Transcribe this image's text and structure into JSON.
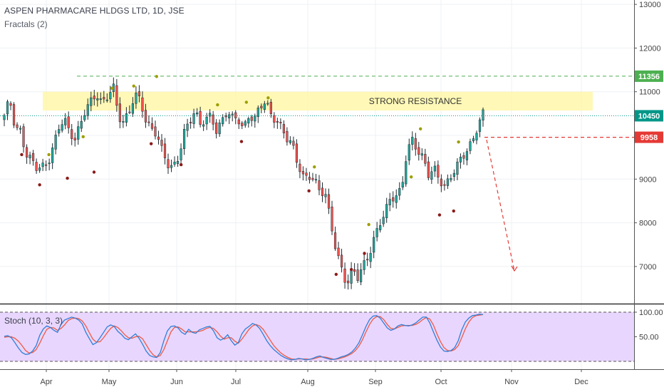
{
  "header": {
    "title": "ASPEN PHARMACARE HLDGS LTD, 1D, JSE",
    "indicator": "Fractals (2)"
  },
  "stoch": {
    "label": "Stoch (10, 3, 3)",
    "ticks": [
      "100.00",
      "50.00"
    ]
  },
  "colors": {
    "up": "#26a69a",
    "down": "#ef5350",
    "fractal_up": "#9e9e00",
    "fractal_down": "#8b1a1a",
    "zone": "#fff59d",
    "stoch_bg": "#e9d6ff",
    "k_line": "#2f7fd8",
    "d_line": "#ef5a44",
    "resistance": "#4caf50",
    "current": "#009688",
    "target": "#e53935"
  },
  "chart_data": {
    "type": "candlestick",
    "title": "ASPEN PHARMACARE HLDGS LTD, 1D, JSE",
    "y_axis_ticks": [
      7000,
      8000,
      9000,
      10000,
      11000,
      12000,
      13000
    ],
    "ylim": [
      6150,
      13100
    ],
    "x_axis_labels": [
      "Apr",
      "May",
      "Jun",
      "Jul",
      "Aug",
      "Sep",
      "Oct",
      "Nov",
      "Dec"
    ],
    "resistance_zone": {
      "low": 10570,
      "high": 11000,
      "label": "STRONG RESISTANCE"
    },
    "price_tags": [
      {
        "value": 11356,
        "label": "11356",
        "style": "dashed",
        "color": "#4caf50"
      },
      {
        "value": 10450,
        "label": "10450",
        "style": "dotted",
        "color": "#009688"
      },
      {
        "value": 9958,
        "label": "9958",
        "style": "dashed",
        "color": "#e53935"
      }
    ],
    "projection_arrow": {
      "from": 9900,
      "to": 6900
    },
    "price_path": [
      [
        10400,
        11600
      ],
      [
        10800,
        11400
      ],
      [
        10200,
        10200
      ],
      [
        10150,
        10100
      ],
      [
        9600,
        9450
      ],
      [
        9400,
        9300
      ],
      [
        9200,
        9100
      ],
      [
        9250,
        9150
      ],
      [
        9400,
        9300
      ],
      [
        9800,
        9600
      ],
      [
        10200,
        10300
      ],
      [
        10350,
        10250
      ],
      [
        10000,
        9900
      ],
      [
        9900,
        9850
      ],
      [
        10300,
        10150
      ],
      [
        10700,
        10500
      ],
      [
        10800,
        11000
      ],
      [
        10900,
        10600
      ],
      [
        10650,
        10500
      ],
      [
        10900,
        11100
      ],
      [
        11200,
        10800
      ],
      [
        10500,
        10600
      ],
      [
        10300,
        10200
      ],
      [
        10500,
        10400
      ],
      [
        10900,
        11400
      ],
      [
        10800,
        10700
      ],
      [
        10400,
        10300
      ],
      [
        10200,
        10150
      ],
      [
        10050,
        9950
      ],
      [
        9600,
        9500
      ],
      [
        9300,
        9100
      ],
      [
        9250,
        9200
      ],
      [
        9550,
        9450
      ],
      [
        10100,
        9950
      ],
      [
        10300,
        10350
      ],
      [
        10500,
        10400
      ],
      [
        10200,
        10250
      ],
      [
        10400,
        10350
      ],
      [
        10500,
        10450
      ],
      [
        10150,
        10100
      ],
      [
        10300,
        10300
      ],
      [
        10500,
        10450
      ],
      [
        10350,
        10400
      ],
      [
        10400,
        10350
      ],
      [
        10200,
        10250
      ],
      [
        10500,
        10300
      ],
      [
        10350,
        10450
      ],
      [
        10600,
        10650
      ],
      [
        10750,
        10700
      ],
      [
        10500,
        10450
      ],
      [
        10400,
        10350
      ],
      [
        10200,
        10150
      ],
      [
        9900,
        9850
      ],
      [
        9700,
        9650
      ],
      [
        9300,
        9250
      ],
      [
        9050,
        9000
      ],
      [
        9150,
        9100
      ],
      [
        9000,
        8950
      ],
      [
        8700,
        8600
      ],
      [
        8600,
        8500
      ],
      [
        8000,
        7900
      ],
      [
        7400,
        7300
      ],
      [
        7000,
        6900
      ],
      [
        6600,
        6500
      ],
      [
        6900,
        7000
      ],
      [
        6700,
        6650
      ],
      [
        7000,
        7100
      ],
      [
        7300,
        7250
      ],
      [
        7700,
        7600
      ],
      [
        8000,
        7900
      ],
      [
        8200,
        8300
      ],
      [
        8500,
        8400
      ],
      [
        8600,
        8550
      ],
      [
        8800,
        8900
      ],
      [
        9700,
        9600
      ],
      [
        9900,
        9950
      ],
      [
        9600,
        9650
      ],
      [
        9400,
        9450
      ],
      [
        9100,
        9050
      ],
      [
        9300,
        9200
      ],
      [
        9050,
        8950
      ],
      [
        8800,
        8750
      ],
      [
        9000,
        8900
      ],
      [
        9200,
        9250
      ],
      [
        9500,
        9600
      ],
      [
        9700,
        9750
      ],
      [
        9900,
        10000
      ],
      [
        10200,
        10300
      ],
      [
        10450,
        10450
      ]
    ],
    "fractals_up": [
      [
        8.2,
        9560
      ],
      [
        14.5,
        9970
      ],
      [
        19.8,
        11080
      ],
      [
        23.8,
        11130
      ],
      [
        28.0,
        11350
      ],
      [
        39.2,
        10700
      ],
      [
        44.5,
        10760
      ],
      [
        48.5,
        10860
      ],
      [
        57.0,
        9280
      ],
      [
        67.0,
        7960
      ],
      [
        74.8,
        9050
      ],
      [
        76.5,
        10150
      ],
      [
        83.5,
        9850
      ]
    ],
    "fractals_down": [
      [
        3.2,
        9560
      ],
      [
        6.5,
        8870
      ],
      [
        11.6,
        9020
      ],
      [
        16.5,
        9160
      ],
      [
        27.0,
        9810
      ],
      [
        32.5,
        9330
      ],
      [
        43.6,
        9860
      ],
      [
        56.0,
        8730
      ],
      [
        61.0,
        6820
      ],
      [
        63.8,
        6930
      ],
      [
        66.2,
        7300
      ],
      [
        80.0,
        8180
      ],
      [
        82.6,
        8270
      ]
    ],
    "stoch": {
      "k": [
        51,
        52,
        48,
        38,
        27,
        18,
        14,
        15,
        21,
        32,
        53,
        66,
        72,
        69,
        63,
        59,
        75,
        84,
        87,
        90,
        88,
        84,
        76,
        59,
        46,
        34,
        38,
        48,
        59,
        70,
        74,
        71,
        61,
        55,
        47,
        44,
        50,
        56,
        47,
        35,
        21,
        12,
        9,
        8,
        18,
        42,
        62,
        71,
        72,
        68,
        59,
        55,
        65,
        59,
        57,
        64,
        67,
        70,
        71,
        62,
        48,
        43,
        47,
        54,
        42,
        33,
        38,
        56,
        66,
        71,
        77,
        74,
        67,
        55,
        42,
        32,
        24,
        18,
        12,
        8,
        5,
        3,
        4,
        6,
        5,
        3,
        4,
        6,
        9,
        11,
        8,
        6,
        4,
        4,
        6,
        9,
        11,
        14,
        19,
        27,
        38,
        54,
        71,
        85,
        92,
        93,
        88,
        78,
        68,
        63,
        66,
        72,
        75,
        73,
        72,
        74,
        78,
        84,
        90,
        90,
        78,
        60,
        43,
        29,
        21,
        20,
        22,
        28,
        42,
        64,
        80,
        88,
        93,
        94,
        96,
        95
      ],
      "d": [
        49,
        50,
        50,
        47,
        41,
        32,
        22,
        17,
        18,
        24,
        37,
        52,
        65,
        69,
        68,
        63,
        67,
        74,
        83,
        87,
        88,
        87,
        82,
        72,
        58,
        45,
        39,
        40,
        48,
        58,
        67,
        72,
        69,
        62,
        54,
        48,
        47,
        50,
        51,
        46,
        34,
        22,
        13,
        9,
        12,
        24,
        42,
        60,
        69,
        70,
        66,
        60,
        60,
        60,
        60,
        61,
        63,
        67,
        69,
        67,
        60,
        51,
        45,
        48,
        48,
        41,
        37,
        45,
        55,
        65,
        72,
        75,
        72,
        65,
        54,
        43,
        32,
        24,
        17,
        12,
        8,
        5,
        4,
        5,
        5,
        5,
        4,
        5,
        7,
        9,
        9,
        8,
        6,
        4,
        5,
        7,
        9,
        12,
        16,
        22,
        31,
        44,
        60,
        75,
        86,
        91,
        91,
        85,
        75,
        67,
        66,
        69,
        72,
        73,
        73,
        73,
        75,
        79,
        85,
        89,
        86,
        74,
        56,
        40,
        28,
        22,
        21,
        24,
        32,
        48,
        66,
        80,
        89,
        93,
        94,
        95
      ]
    }
  }
}
